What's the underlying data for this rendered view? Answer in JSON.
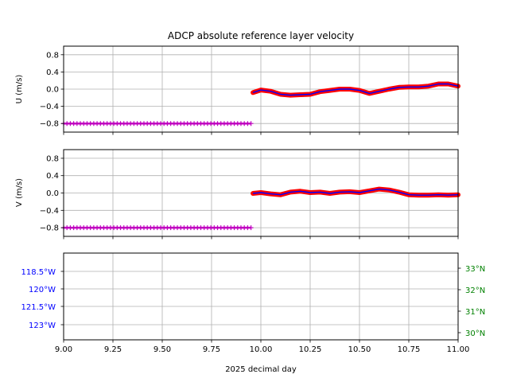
{
  "chart_data": {
    "type": "scatter",
    "title": "ADCP absolute reference layer velocity",
    "xlabel": "2025 decimal day",
    "xlim": [
      9.0,
      11.0
    ],
    "x_ticks": [
      "9.00",
      "9.25",
      "9.50",
      "9.75",
      "10.00",
      "10.25",
      "10.50",
      "10.75",
      "11.00"
    ],
    "x_tick_values": [
      9.0,
      9.25,
      9.5,
      9.75,
      10.0,
      10.25,
      10.5,
      10.75,
      11.0
    ],
    "grid": true,
    "colors": {
      "raw": "#ff0000",
      "smoothed": "#0000ff",
      "fill": "#c000c0",
      "lon_axis": "#0000ff",
      "lat_axis": "#008000"
    },
    "panels": [
      {
        "ylabel": "U (m/s)",
        "ylim": [
          -1.0,
          1.0
        ],
        "y_ticks": [
          "0.8",
          "0.4",
          "0.0",
          "−0.4",
          "−0.8"
        ],
        "y_tick_values": [
          0.8,
          0.4,
          0.0,
          -0.4,
          -0.8
        ],
        "fill_series": {
          "x_start": 9.0,
          "x_end": 9.95,
          "y": -0.8
        },
        "series": {
          "x": [
            9.96,
            10.0,
            10.05,
            10.1,
            10.15,
            10.2,
            10.25,
            10.3,
            10.35,
            10.4,
            10.45,
            10.5,
            10.55,
            10.6,
            10.65,
            10.7,
            10.75,
            10.8,
            10.85,
            10.9,
            10.95,
            11.0
          ],
          "y": [
            -0.08,
            -0.02,
            -0.05,
            -0.12,
            -0.14,
            -0.13,
            -0.12,
            -0.06,
            -0.03,
            0.0,
            0.0,
            -0.03,
            -0.1,
            -0.05,
            0.0,
            0.04,
            0.05,
            0.05,
            0.07,
            0.12,
            0.12,
            0.07
          ]
        }
      },
      {
        "ylabel": "V (m/s)",
        "ylim": [
          -1.0,
          1.0
        ],
        "y_ticks": [
          "0.8",
          "0.4",
          "0.0",
          "−0.4",
          "−0.8"
        ],
        "y_tick_values": [
          0.8,
          0.4,
          0.0,
          -0.4,
          -0.8
        ],
        "fill_series": {
          "x_start": 9.0,
          "x_end": 9.95,
          "y": -0.8
        },
        "series": {
          "x": [
            9.96,
            10.0,
            10.05,
            10.1,
            10.15,
            10.2,
            10.25,
            10.3,
            10.35,
            10.4,
            10.45,
            10.5,
            10.55,
            10.6,
            10.65,
            10.7,
            10.75,
            10.8,
            10.85,
            10.9,
            10.95,
            11.0
          ],
          "y": [
            -0.01,
            0.01,
            -0.02,
            -0.04,
            0.02,
            0.04,
            0.01,
            0.02,
            -0.01,
            0.02,
            0.03,
            0.01,
            0.05,
            0.09,
            0.07,
            0.02,
            -0.04,
            -0.05,
            -0.05,
            -0.04,
            -0.05,
            -0.04
          ]
        }
      },
      {
        "y_ticks_left": [
          "118.5°W",
          "120°W",
          "121.5°W",
          "123°W"
        ],
        "y_ticks_right": [
          "33°N",
          "32°N",
          "31°N",
          "30°N"
        ]
      }
    ]
  }
}
